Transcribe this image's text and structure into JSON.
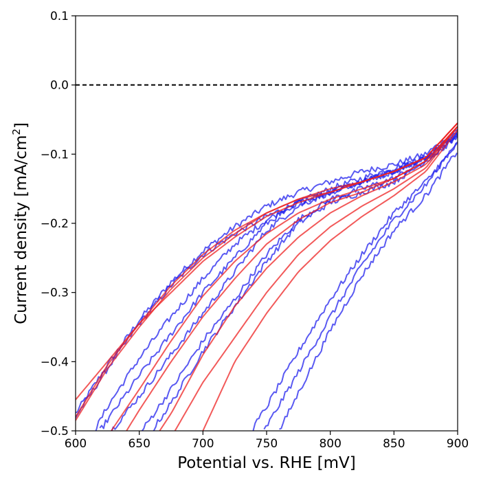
{
  "chart_data": {
    "type": "line",
    "title": "",
    "xlabel": "Potential vs. RHE [mV]",
    "ylabel_main": "Current density [mA/cm",
    "ylabel_sup": "2",
    "ylabel_close": "]",
    "xlim": [
      600,
      900
    ],
    "ylim": [
      -0.5,
      0.1
    ],
    "x_ticks": [
      600,
      650,
      700,
      750,
      800,
      850,
      900
    ],
    "x_tick_labels": [
      "600",
      "650",
      "700",
      "750",
      "800",
      "850",
      "900"
    ],
    "y_ticks": [
      -0.5,
      -0.4,
      -0.3,
      -0.2,
      -0.1,
      0.0,
      0.1
    ],
    "y_tick_labels": [
      "−0.5",
      "−0.4",
      "−0.3",
      "−0.2",
      "−0.1",
      "0.0",
      "0.1"
    ],
    "reference_line": {
      "y": 0.0,
      "style": "dashed",
      "color": "#000000"
    },
    "grid": false,
    "legend": "none",
    "series_colors": {
      "blue": "#2222ee",
      "red": "#ee2222"
    },
    "series": [
      {
        "color": "blue",
        "noisy": true,
        "x": [
          600,
          625,
          650,
          675,
          700,
          725,
          750,
          775,
          800,
          825,
          850,
          875,
          900
        ],
        "y": [
          -0.475,
          -0.405,
          -0.34,
          -0.285,
          -0.24,
          -0.205,
          -0.175,
          -0.155,
          -0.14,
          -0.125,
          -0.115,
          -0.1,
          -0.065
        ]
      },
      {
        "color": "blue",
        "noisy": true,
        "x": [
          600,
          625,
          650,
          675,
          700,
          725,
          750,
          775,
          800,
          825,
          850,
          875,
          900
        ],
        "y": [
          -0.48,
          -0.41,
          -0.345,
          -0.29,
          -0.245,
          -0.215,
          -0.19,
          -0.17,
          -0.15,
          -0.135,
          -0.12,
          -0.105,
          -0.07
        ]
      },
      {
        "color": "blue",
        "noisy": true,
        "x": [
          615,
          625,
          650,
          675,
          700,
          725,
          750,
          775,
          800,
          825,
          850,
          875,
          900
        ],
        "y": [
          -0.5,
          -0.465,
          -0.395,
          -0.335,
          -0.28,
          -0.23,
          -0.195,
          -0.17,
          -0.155,
          -0.14,
          -0.125,
          -0.105,
          -0.07
        ]
      },
      {
        "color": "blue",
        "noisy": true,
        "x": [
          619,
          650,
          675,
          700,
          725,
          750,
          775,
          800,
          825,
          850,
          875,
          900
        ],
        "y": [
          -0.5,
          -0.42,
          -0.36,
          -0.3,
          -0.25,
          -0.2,
          -0.17,
          -0.155,
          -0.14,
          -0.125,
          -0.105,
          -0.07
        ]
      },
      {
        "color": "blue",
        "noisy": true,
        "x": [
          628,
          650,
          675,
          700,
          725,
          750,
          775,
          800,
          825,
          850,
          875,
          900
        ],
        "y": [
          -0.5,
          -0.45,
          -0.39,
          -0.33,
          -0.27,
          -0.21,
          -0.175,
          -0.155,
          -0.14,
          -0.125,
          -0.105,
          -0.07
        ]
      },
      {
        "color": "blue",
        "noisy": true,
        "x": [
          652,
          675,
          700,
          725,
          750,
          775,
          800,
          825,
          850,
          875,
          900
        ],
        "y": [
          -0.5,
          -0.44,
          -0.37,
          -0.31,
          -0.245,
          -0.195,
          -0.165,
          -0.15,
          -0.135,
          -0.11,
          -0.075
        ]
      },
      {
        "color": "blue",
        "noisy": true,
        "x": [
          660,
          675,
          700,
          725,
          750,
          775,
          800,
          825,
          850,
          875,
          900
        ],
        "y": [
          -0.5,
          -0.46,
          -0.385,
          -0.32,
          -0.255,
          -0.2,
          -0.17,
          -0.155,
          -0.14,
          -0.11,
          -0.075
        ]
      },
      {
        "color": "blue",
        "noisy": true,
        "x": [
          738,
          750,
          775,
          800,
          825,
          850,
          875,
          900
        ],
        "y": [
          -0.5,
          -0.465,
          -0.385,
          -0.31,
          -0.245,
          -0.185,
          -0.14,
          -0.085
        ]
      },
      {
        "color": "blue",
        "noisy": true,
        "x": [
          748,
          775,
          800,
          825,
          850,
          875,
          900
        ],
        "y": [
          -0.5,
          -0.415,
          -0.335,
          -0.26,
          -0.195,
          -0.145,
          -0.08
        ]
      },
      {
        "color": "blue",
        "noisy": true,
        "x": [
          760,
          775,
          800,
          825,
          850,
          875,
          900
        ],
        "y": [
          -0.5,
          -0.445,
          -0.355,
          -0.275,
          -0.21,
          -0.16,
          -0.095
        ]
      },
      {
        "color": "red",
        "noisy": false,
        "x": [
          600,
          625,
          650,
          675,
          700,
          725,
          750,
          775,
          800,
          825,
          850,
          875,
          900
        ],
        "y": [
          -0.455,
          -0.4,
          -0.345,
          -0.3,
          -0.255,
          -0.22,
          -0.19,
          -0.17,
          -0.155,
          -0.14,
          -0.125,
          -0.105,
          -0.055
        ]
      },
      {
        "color": "red",
        "noisy": false,
        "x": [
          600,
          625,
          650,
          675,
          700,
          725,
          750,
          775,
          800,
          825,
          850,
          875,
          900
        ],
        "y": [
          -0.485,
          -0.41,
          -0.35,
          -0.295,
          -0.25,
          -0.215,
          -0.185,
          -0.165,
          -0.15,
          -0.14,
          -0.125,
          -0.105,
          -0.055
        ]
      },
      {
        "color": "red",
        "noisy": false,
        "x": [
          600,
          625,
          650,
          675,
          700,
          725,
          750,
          775,
          800,
          825,
          850,
          875,
          900
        ],
        "y": [
          -0.48,
          -0.405,
          -0.345,
          -0.29,
          -0.245,
          -0.21,
          -0.185,
          -0.165,
          -0.155,
          -0.14,
          -0.125,
          -0.105,
          -0.055
        ]
      },
      {
        "color": "red",
        "noisy": false,
        "x": [
          628,
          650,
          675,
          700,
          725,
          750,
          775,
          800,
          825,
          850,
          875,
          900
        ],
        "y": [
          -0.5,
          -0.44,
          -0.37,
          -0.305,
          -0.255,
          -0.215,
          -0.185,
          -0.165,
          -0.15,
          -0.135,
          -0.11,
          -0.06
        ]
      },
      {
        "color": "red",
        "noisy": false,
        "x": [
          640,
          650,
          675,
          700,
          725,
          750,
          775,
          800,
          825,
          850,
          875,
          900
        ],
        "y": [
          -0.5,
          -0.47,
          -0.4,
          -0.335,
          -0.28,
          -0.23,
          -0.195,
          -0.17,
          -0.155,
          -0.135,
          -0.11,
          -0.06
        ]
      },
      {
        "color": "red",
        "noisy": false,
        "x": [
          666,
          675,
          700,
          725,
          750,
          775,
          800,
          825,
          850,
          875,
          900
        ],
        "y": [
          -0.5,
          -0.475,
          -0.39,
          -0.32,
          -0.265,
          -0.22,
          -0.185,
          -0.16,
          -0.14,
          -0.115,
          -0.06
        ]
      },
      {
        "color": "red",
        "noisy": false,
        "x": [
          678,
          700,
          725,
          750,
          775,
          800,
          825,
          850,
          875,
          900
        ],
        "y": [
          -0.5,
          -0.43,
          -0.365,
          -0.3,
          -0.245,
          -0.205,
          -0.175,
          -0.15,
          -0.12,
          -0.06
        ]
      },
      {
        "color": "red",
        "noisy": false,
        "x": [
          700,
          725,
          750,
          775,
          800,
          825,
          850,
          875,
          900
        ],
        "y": [
          -0.5,
          -0.4,
          -0.33,
          -0.27,
          -0.225,
          -0.19,
          -0.16,
          -0.125,
          -0.065
        ]
      }
    ]
  }
}
